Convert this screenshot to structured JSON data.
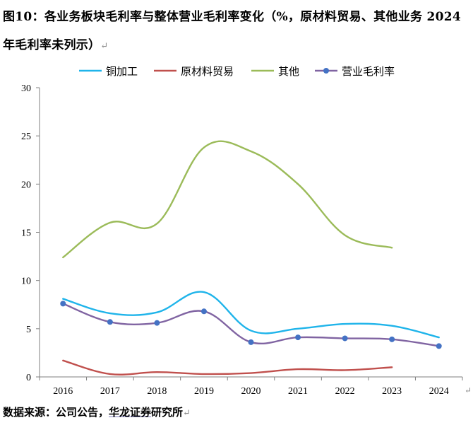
{
  "figure": {
    "title_line1": "图10：各业务板块毛利率与整体营业毛利率变化（%，原材料贸易、其他业务 2024",
    "title_line2": "年毛利率未列示）",
    "return_mark": "↵",
    "source_prefix": "数据来源：公司公告，",
    "source_firm": "华龙证券",
    "source_suffix": "研究所"
  },
  "colors": {
    "copper": "#1fb4ea",
    "trade": "#c0504d",
    "other": "#9bbb59",
    "operating": "#8064a2",
    "operating_marker": "#4472c4",
    "axis": "#7f7f7f"
  },
  "chart_data": {
    "type": "line",
    "categories": [
      "2016",
      "2017",
      "2018",
      "2019",
      "2020",
      "2021",
      "2022",
      "2023",
      "2024"
    ],
    "ylim": [
      0,
      30
    ],
    "yticks": [
      0,
      5,
      10,
      15,
      20,
      25,
      30
    ],
    "grid": false,
    "legend_position": "top",
    "series": [
      {
        "name": "铜加工",
        "values": [
          8.1,
          6.6,
          6.7,
          8.8,
          4.8,
          5.0,
          5.5,
          5.3,
          4.1
        ],
        "marker": false
      },
      {
        "name": "原材料贸易",
        "values": [
          1.7,
          0.3,
          0.5,
          0.3,
          0.4,
          0.8,
          0.7,
          1.0,
          null
        ],
        "marker": false
      },
      {
        "name": "其他",
        "values": [
          12.4,
          16.0,
          15.9,
          23.8,
          23.4,
          20.0,
          14.7,
          13.4,
          null
        ],
        "marker": false
      },
      {
        "name": "营业毛利率",
        "values": [
          7.6,
          5.7,
          5.6,
          6.8,
          3.6,
          4.1,
          4.0,
          3.9,
          3.2
        ],
        "marker": true
      }
    ]
  }
}
